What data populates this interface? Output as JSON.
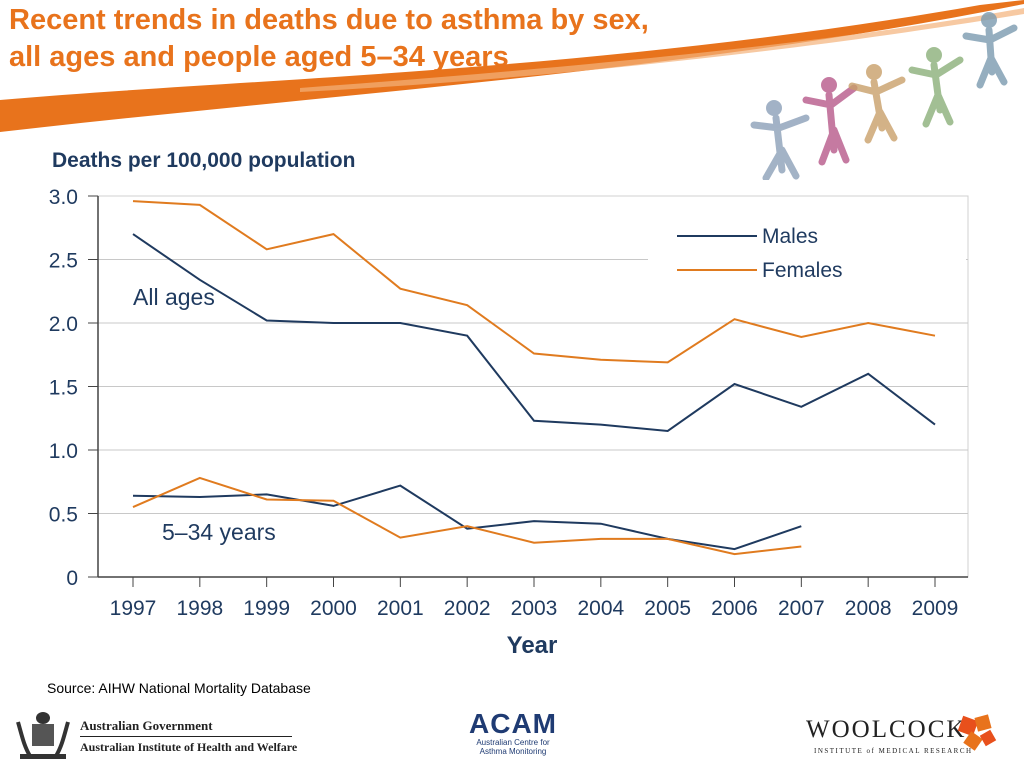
{
  "header": {
    "title_line1": "Recent trends in deaths due to asthma by sex,",
    "title_line2": "all ages and people aged 5–34 years"
  },
  "colors": {
    "accent": "#e8731c",
    "males": "#1f3a5f",
    "females": "#e07b1f",
    "grid": "#c8c8c8"
  },
  "chart_data": {
    "type": "line",
    "ylabel": "Deaths per 100,000 population",
    "xlabel": "Year",
    "x": [
      "1997",
      "1998",
      "1999",
      "2000",
      "2001",
      "2002",
      "2003",
      "2004",
      "2005",
      "2006",
      "2007",
      "2008",
      "2009"
    ],
    "ylim": [
      0,
      3.0
    ],
    "yticks": [
      "0",
      "0.5",
      "1.0",
      "1.5",
      "2.0",
      "2.5",
      "3.0"
    ],
    "grid": true,
    "legend_position": "top-right",
    "legend": [
      {
        "label": "Males",
        "color": "#1f3a5f"
      },
      {
        "label": "Females",
        "color": "#e07b1f"
      }
    ],
    "annotations": {
      "all_ages": "All ages",
      "young": "5–34 years"
    },
    "series": [
      {
        "name": "Males",
        "group": "All ages",
        "color": "#1f3a5f",
        "values": [
          2.7,
          2.34,
          2.02,
          2.0,
          2.0,
          1.9,
          1.23,
          1.2,
          1.15,
          1.52,
          1.34,
          1.6,
          1.2
        ]
      },
      {
        "name": "Females",
        "group": "All ages",
        "color": "#e07b1f",
        "values": [
          2.96,
          2.93,
          2.58,
          2.7,
          2.27,
          2.14,
          1.76,
          1.71,
          1.69,
          2.03,
          1.89,
          2.0,
          1.9
        ]
      },
      {
        "name": "Males",
        "group": "5–34 years",
        "color": "#1f3a5f",
        "values": [
          0.64,
          0.63,
          0.65,
          0.56,
          0.72,
          0.38,
          0.44,
          0.42,
          0.3,
          0.22,
          0.4,
          null,
          null
        ]
      },
      {
        "name": "Females",
        "group": "5–34 years",
        "color": "#e07b1f",
        "values": [
          0.55,
          0.78,
          0.61,
          0.6,
          0.31,
          0.4,
          0.27,
          0.3,
          0.3,
          0.18,
          0.24,
          null,
          null
        ]
      }
    ]
  },
  "footer": {
    "source": "Source: AIHW National Mortality Database",
    "ag_line1": "Australian Government",
    "ag_line2": "Australian Institute of Health and Welfare",
    "acam_big": "ACAM",
    "acam_small1": "Australian Centre for",
    "acam_small2": "Asthma Monitoring",
    "woolcock_big": "WOOLCOCK",
    "woolcock_small": "INSTITUTE of MEDICAL RESEARCH"
  }
}
